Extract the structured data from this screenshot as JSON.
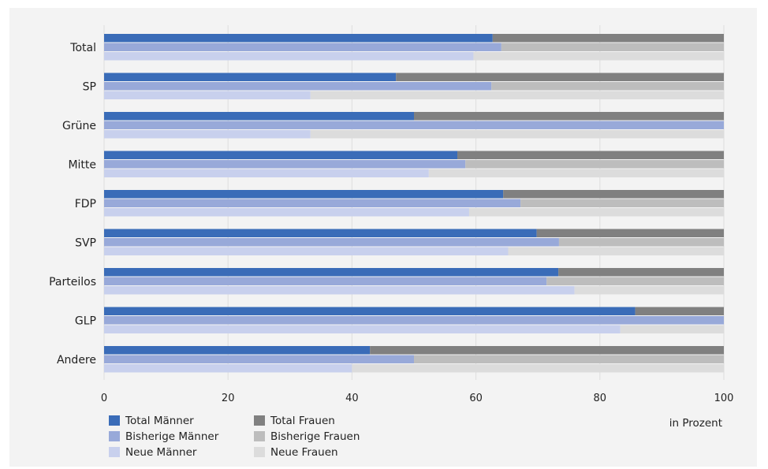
{
  "chart_data": {
    "type": "bar",
    "orientation": "horizontal",
    "stacked_to_100": true,
    "categories": [
      "Total",
      "SP",
      "Grüne",
      "Mitte",
      "FDP",
      "SVP",
      "Parteilos",
      "GLP",
      "Andere"
    ],
    "series": [
      {
        "name": "Total Männer",
        "values": [
          62.7,
          47.1,
          50.0,
          57.0,
          64.4,
          69.8,
          73.3,
          85.7,
          42.9
        ]
      },
      {
        "name": "Bisherige Männer",
        "values": [
          64.1,
          62.5,
          100.0,
          58.3,
          67.2,
          73.4,
          71.4,
          100.0,
          50.0
        ]
      },
      {
        "name": "Neue Männer",
        "values": [
          59.6,
          33.3,
          33.3,
          52.4,
          58.9,
          65.2,
          75.9,
          83.3,
          40.0
        ]
      },
      {
        "name": "Total Frauen",
        "values": [
          37.3,
          52.9,
          50.0,
          43.0,
          35.6,
          30.2,
          26.7,
          14.3,
          57.1
        ]
      },
      {
        "name": "Bisherige Frauen",
        "values": [
          35.9,
          37.5,
          0.0,
          41.7,
          32.8,
          26.6,
          28.6,
          0.0,
          50.0
        ]
      },
      {
        "name": "Neue Frauen",
        "values": [
          40.4,
          66.7,
          66.7,
          47.6,
          41.1,
          34.8,
          24.1,
          16.7,
          60.0
        ]
      }
    ],
    "xlim": [
      0,
      100
    ],
    "xticks": [
      "0",
      "20",
      "40",
      "60",
      "80",
      "100"
    ],
    "xlabel": "in Prozent",
    "grid": true,
    "legend_position": "bottom-left",
    "colors": {
      "Total Männer": "#3a6cb8",
      "Bisherige Männer": "#98a9d9",
      "Neue Männer": "#c8d0ed",
      "Total Frauen": "#808080",
      "Bisherige Frauen": "#bdbdbd",
      "Neue Frauen": "#dcdcdc"
    }
  }
}
